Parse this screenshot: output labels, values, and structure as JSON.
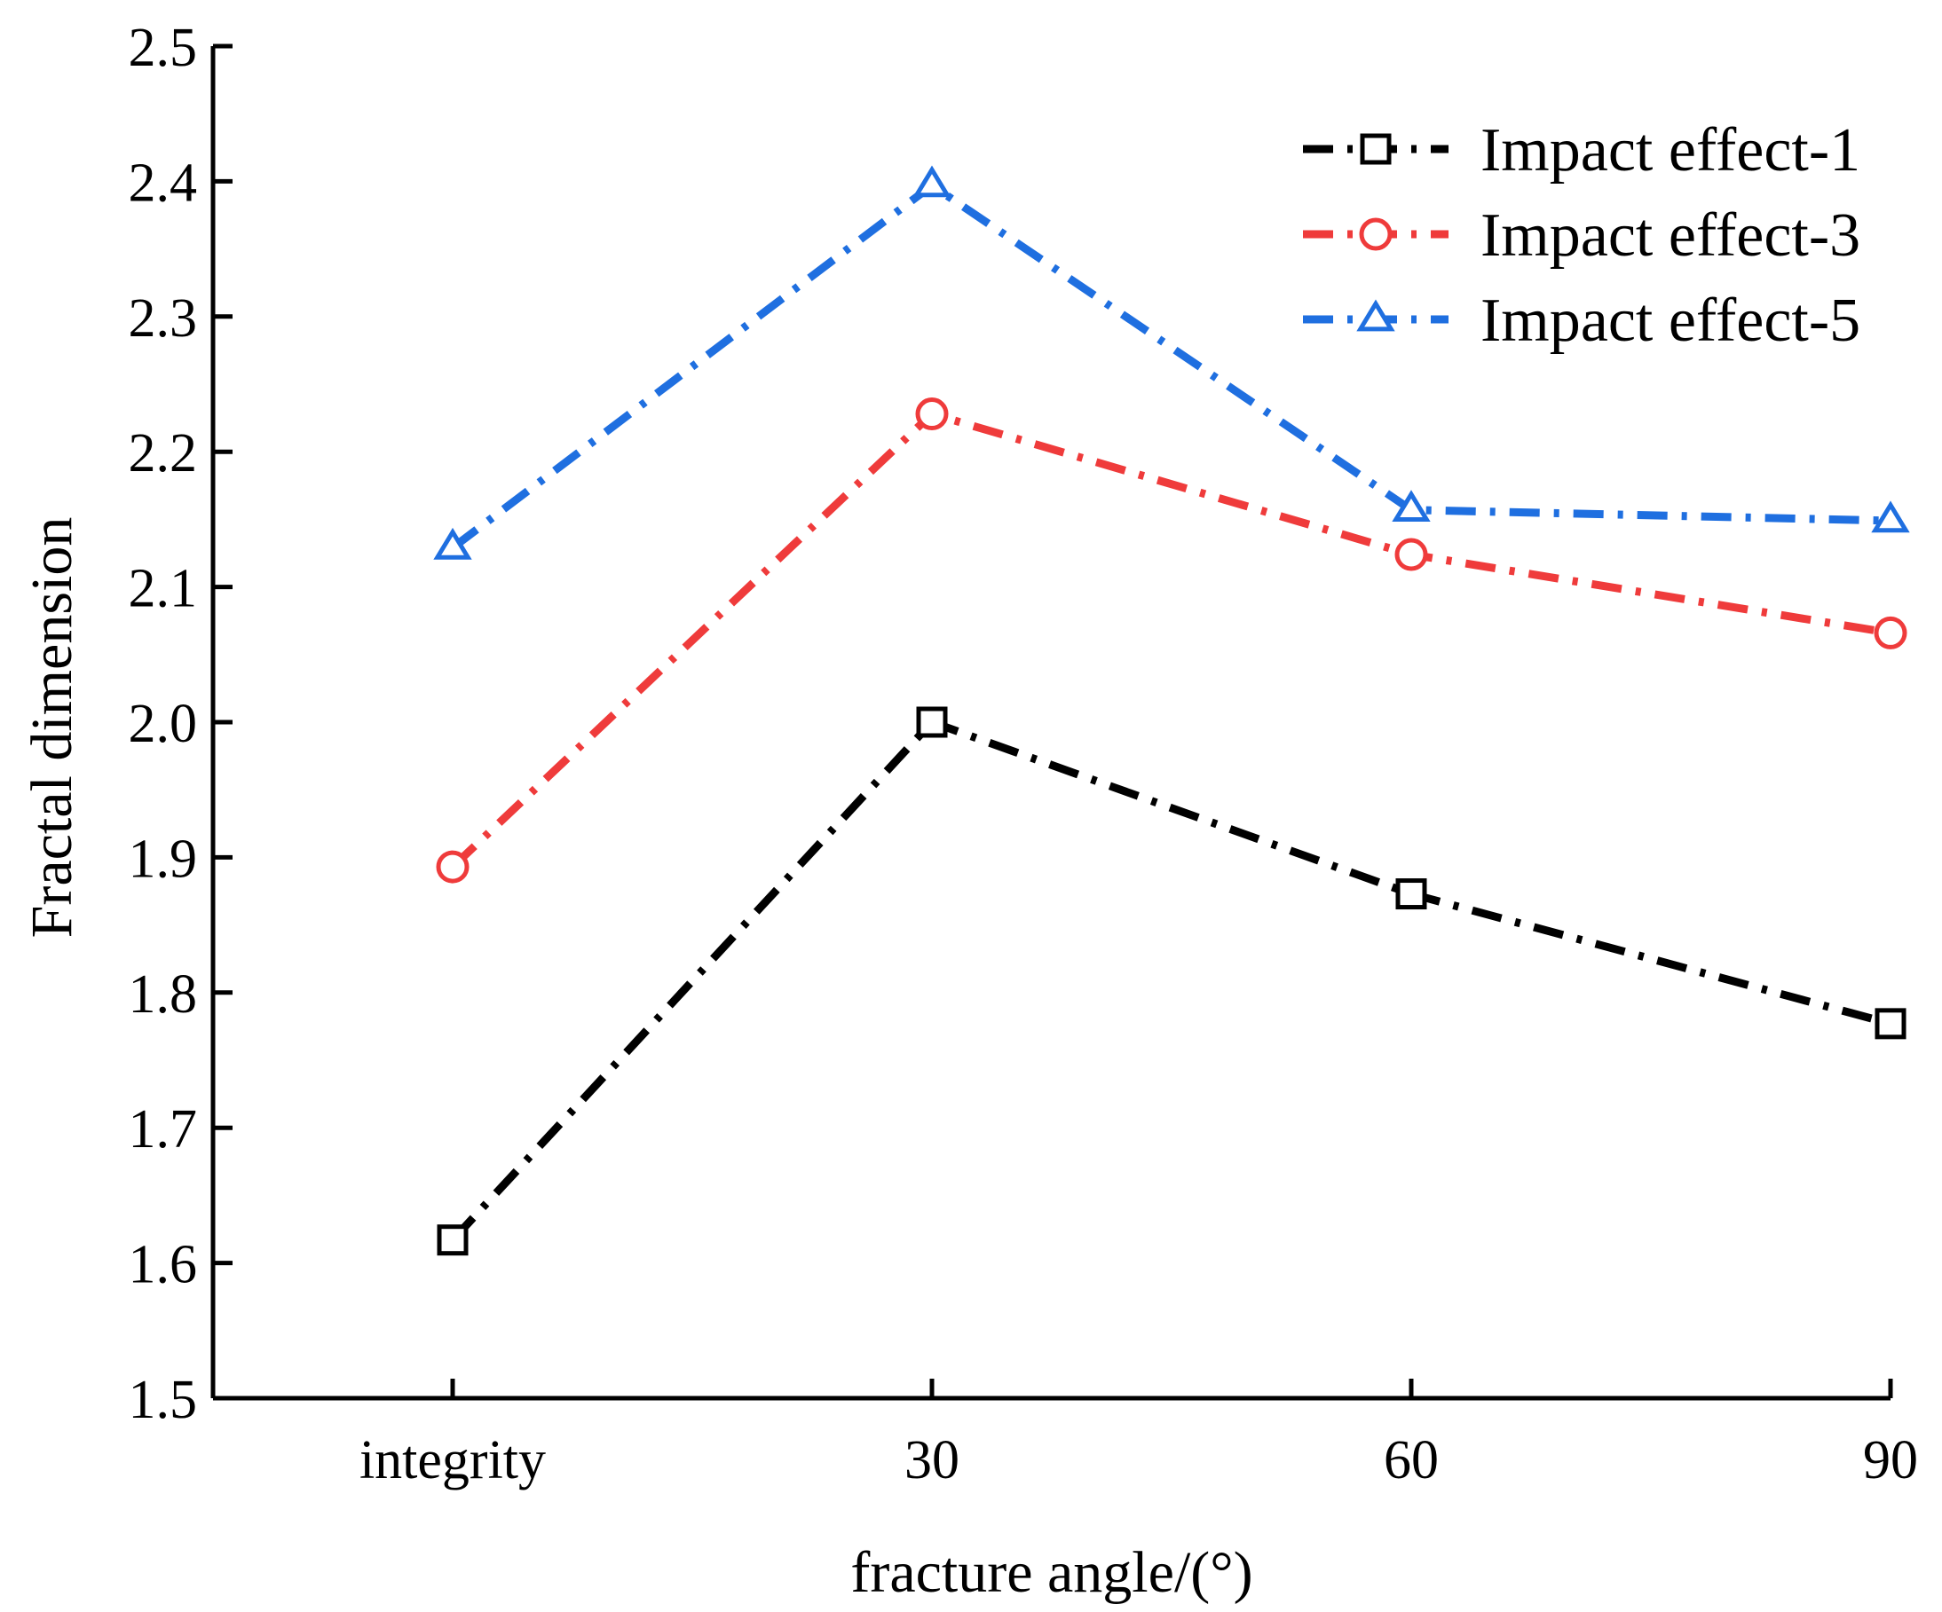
{
  "chart_data": {
    "type": "line",
    "title": "",
    "xlabel": "fracture angle/(°)",
    "ylabel": "Fractal dimension",
    "categories": [
      "integrity",
      "30",
      "60",
      "90"
    ],
    "ylim": [
      1.5,
      2.5
    ],
    "yticks": [
      "1.5",
      "1.6",
      "1.7",
      "1.8",
      "1.9",
      "2.0",
      "2.1",
      "2.2",
      "2.3",
      "2.4",
      "2.5"
    ],
    "grid": false,
    "legend_position": "top-right",
    "series": [
      {
        "name": "Impact effect-1",
        "values": [
          1.617,
          2.0,
          1.873,
          1.777
        ],
        "color": "#000000",
        "marker": "square",
        "line_style": "dash-dot"
      },
      {
        "name": "Impact effect-3",
        "values": [
          1.893,
          2.228,
          2.124,
          2.066
        ],
        "color": "#ef3b3b",
        "marker": "circle",
        "line_style": "dash-dot"
      },
      {
        "name": "Impact effect-5",
        "values": [
          2.129,
          2.397,
          2.157,
          2.149
        ],
        "color": "#1f6fe0",
        "marker": "triangle",
        "line_style": "dash-dot"
      }
    ]
  }
}
